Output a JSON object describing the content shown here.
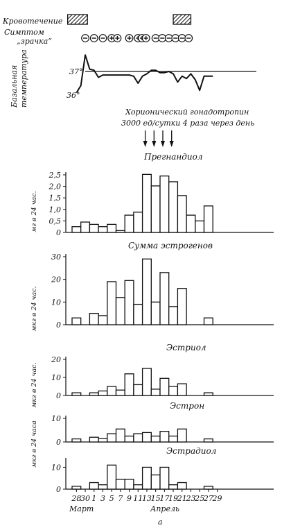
{
  "chart_data": {
    "type": "bar",
    "x_ticks": [
      "28",
      "30",
      "1",
      "3",
      "5",
      "7",
      "9",
      "11",
      "13",
      "15",
      "17",
      "19",
      "21",
      "23",
      "25",
      "27",
      "29"
    ],
    "month_labels": [
      "Март",
      "Апрель"
    ],
    "figure_label": "а",
    "top": {
      "bleeding_label": "Кровотечение",
      "pupil_label": "Симптом\n„зрачка“",
      "bleeding_periods": [
        [
          27,
          31.5
        ],
        [
          51,
          55
        ]
      ],
      "pupil_symptom": [
        {
          "x": 31,
          "sign": "−"
        },
        {
          "x": 33,
          "sign": "−"
        },
        {
          "x": 35,
          "sign": "−"
        },
        {
          "x": 37,
          "sign": "+"
        },
        {
          "x": 38.3,
          "sign": "+"
        },
        {
          "x": 41,
          "sign": "+"
        },
        {
          "x": 43,
          "sign": "+"
        },
        {
          "x": 43.9,
          "sign": "+"
        },
        {
          "x": 44.8,
          "sign": "+"
        },
        {
          "x": 47,
          "sign": "−"
        },
        {
          "x": 48.5,
          "sign": "−"
        },
        {
          "x": 50,
          "sign": "−"
        },
        {
          "x": 51.5,
          "sign": "−"
        },
        {
          "x": 53,
          "sign": "−"
        },
        {
          "x": 54.5,
          "sign": "−"
        }
      ]
    },
    "temperature": {
      "ylabel": "Базальная температура",
      "ref_labels": [
        "37°",
        "36°"
      ],
      "reference": 37.0,
      "points": [
        [
          29,
          36.1
        ],
        [
          30,
          36.4
        ],
        [
          31,
          37.7
        ],
        [
          32,
          37.1
        ],
        [
          33,
          37.05
        ],
        [
          34,
          36.75
        ],
        [
          35,
          36.85
        ],
        [
          36,
          36.85
        ],
        [
          37,
          36.85
        ],
        [
          38,
          36.85
        ],
        [
          39,
          36.85
        ],
        [
          40,
          36.85
        ],
        [
          41,
          36.85
        ],
        [
          42,
          36.8
        ],
        [
          43,
          36.5
        ],
        [
          44,
          36.8
        ],
        [
          45,
          36.9
        ],
        [
          46,
          37.05
        ],
        [
          47,
          37.05
        ],
        [
          48,
          36.95
        ],
        [
          49,
          36.95
        ],
        [
          50,
          37.0
        ],
        [
          51,
          36.9
        ],
        [
          52,
          36.55
        ],
        [
          53,
          36.8
        ],
        [
          54,
          36.7
        ],
        [
          55,
          36.9
        ],
        [
          56,
          36.65
        ],
        [
          57,
          36.2
        ],
        [
          58,
          36.8
        ],
        [
          59,
          36.8
        ],
        [
          60,
          36.8
        ]
      ]
    },
    "hcg": {
      "text": "Хорионический гонадотропин\n3000 ед/сутки 4 раза через день",
      "days": [
        44,
        46,
        48,
        50
      ]
    },
    "panels": [
      {
        "title": "Прегнандиол",
        "ylabel": "мг в 24 час.",
        "yticks": [
          "0",
          "0,5",
          "1,0",
          "1,5",
          "2,0",
          "2,5"
        ],
        "ylim": [
          0,
          2.5
        ],
        "bars": [
          {
            "x": 28,
            "value": 0.25
          },
          {
            "x": 30,
            "value": 0.45
          },
          {
            "x": 32,
            "value": 0.35
          },
          {
            "x": 34,
            "value": 0.25
          },
          {
            "x": 36,
            "value": 0.35
          },
          {
            "x": 38,
            "value": 0.08
          },
          {
            "x": 40,
            "value": 0.75
          },
          {
            "x": 42,
            "value": 0.88
          },
          {
            "x": 44,
            "value": 2.52
          },
          {
            "x": 46,
            "value": 2.02
          },
          {
            "x": 48,
            "value": 2.45
          },
          {
            "x": 50,
            "value": 2.2
          },
          {
            "x": 52,
            "value": 1.6
          },
          {
            "x": 54,
            "value": 0.75
          },
          {
            "x": 56,
            "value": 0.5
          },
          {
            "x": 58,
            "value": 1.15
          }
        ]
      },
      {
        "title": "Сумма эстрогенов",
        "ylabel": "мкг в 24 час.",
        "yticks": [
          "0",
          "10",
          "20",
          "30"
        ],
        "ylim": [
          0,
          30
        ],
        "bars": [
          {
            "x": 28,
            "value": 3
          },
          {
            "x": 32,
            "value": 5
          },
          {
            "x": 34,
            "value": 4
          },
          {
            "x": 36,
            "value": 19
          },
          {
            "x": 38,
            "value": 12
          },
          {
            "x": 40,
            "value": 19.5
          },
          {
            "x": 42,
            "value": 9
          },
          {
            "x": 44,
            "value": 29
          },
          {
            "x": 46,
            "value": 10
          },
          {
            "x": 48,
            "value": 23
          },
          {
            "x": 50,
            "value": 8
          },
          {
            "x": 52,
            "value": 16
          },
          {
            "x": 58,
            "value": 3
          }
        ]
      },
      {
        "title": "Эстриол",
        "ylabel": "мкг в 24 час.",
        "yticks": [
          "0",
          "10",
          "20"
        ],
        "ylim": [
          0,
          20
        ],
        "bars": [
          {
            "x": 28,
            "value": 1.5
          },
          {
            "x": 32,
            "value": 1.5
          },
          {
            "x": 34,
            "value": 2.5
          },
          {
            "x": 36,
            "value": 5
          },
          {
            "x": 38,
            "value": 3
          },
          {
            "x": 40,
            "value": 12
          },
          {
            "x": 42,
            "value": 6
          },
          {
            "x": 44,
            "value": 15
          },
          {
            "x": 46,
            "value": 3.5
          },
          {
            "x": 48,
            "value": 9.5
          },
          {
            "x": 50,
            "value": 5
          },
          {
            "x": 52,
            "value": 6.5
          },
          {
            "x": 58,
            "value": 1.5
          }
        ]
      },
      {
        "title": "Эстрон",
        "ylabel": "мкг в 24 часа",
        "yticks": [
          "0",
          "10"
        ],
        "ylim": [
          0,
          10
        ],
        "bars": [
          {
            "x": 28,
            "value": 1.3
          },
          {
            "x": 32,
            "value": 2
          },
          {
            "x": 34,
            "value": 1.5
          },
          {
            "x": 36,
            "value": 3.5
          },
          {
            "x": 38,
            "value": 5.5
          },
          {
            "x": 40,
            "value": 2.5
          },
          {
            "x": 42,
            "value": 3.5
          },
          {
            "x": 44,
            "value": 4
          },
          {
            "x": 46,
            "value": 2.5
          },
          {
            "x": 48,
            "value": 4.5
          },
          {
            "x": 50,
            "value": 2.5
          },
          {
            "x": 52,
            "value": 5.5
          },
          {
            "x": 58,
            "value": 1.3
          }
        ]
      },
      {
        "title": "Эстрадиол",
        "ylabel": "",
        "yticks": [
          "0",
          "10"
        ],
        "ylim": [
          0,
          13
        ],
        "bars": [
          {
            "x": 28,
            "value": 1.3
          },
          {
            "x": 32,
            "value": 3
          },
          {
            "x": 34,
            "value": 2
          },
          {
            "x": 36,
            "value": 11
          },
          {
            "x": 38,
            "value": 4.5
          },
          {
            "x": 40,
            "value": 4.5
          },
          {
            "x": 42,
            "value": 2
          },
          {
            "x": 44,
            "value": 10
          },
          {
            "x": 46,
            "value": 6.5
          },
          {
            "x": 48,
            "value": 10
          },
          {
            "x": 50,
            "value": 2
          },
          {
            "x": 52,
            "value": 3
          },
          {
            "x": 58,
            "value": 1.3
          }
        ]
      }
    ]
  }
}
